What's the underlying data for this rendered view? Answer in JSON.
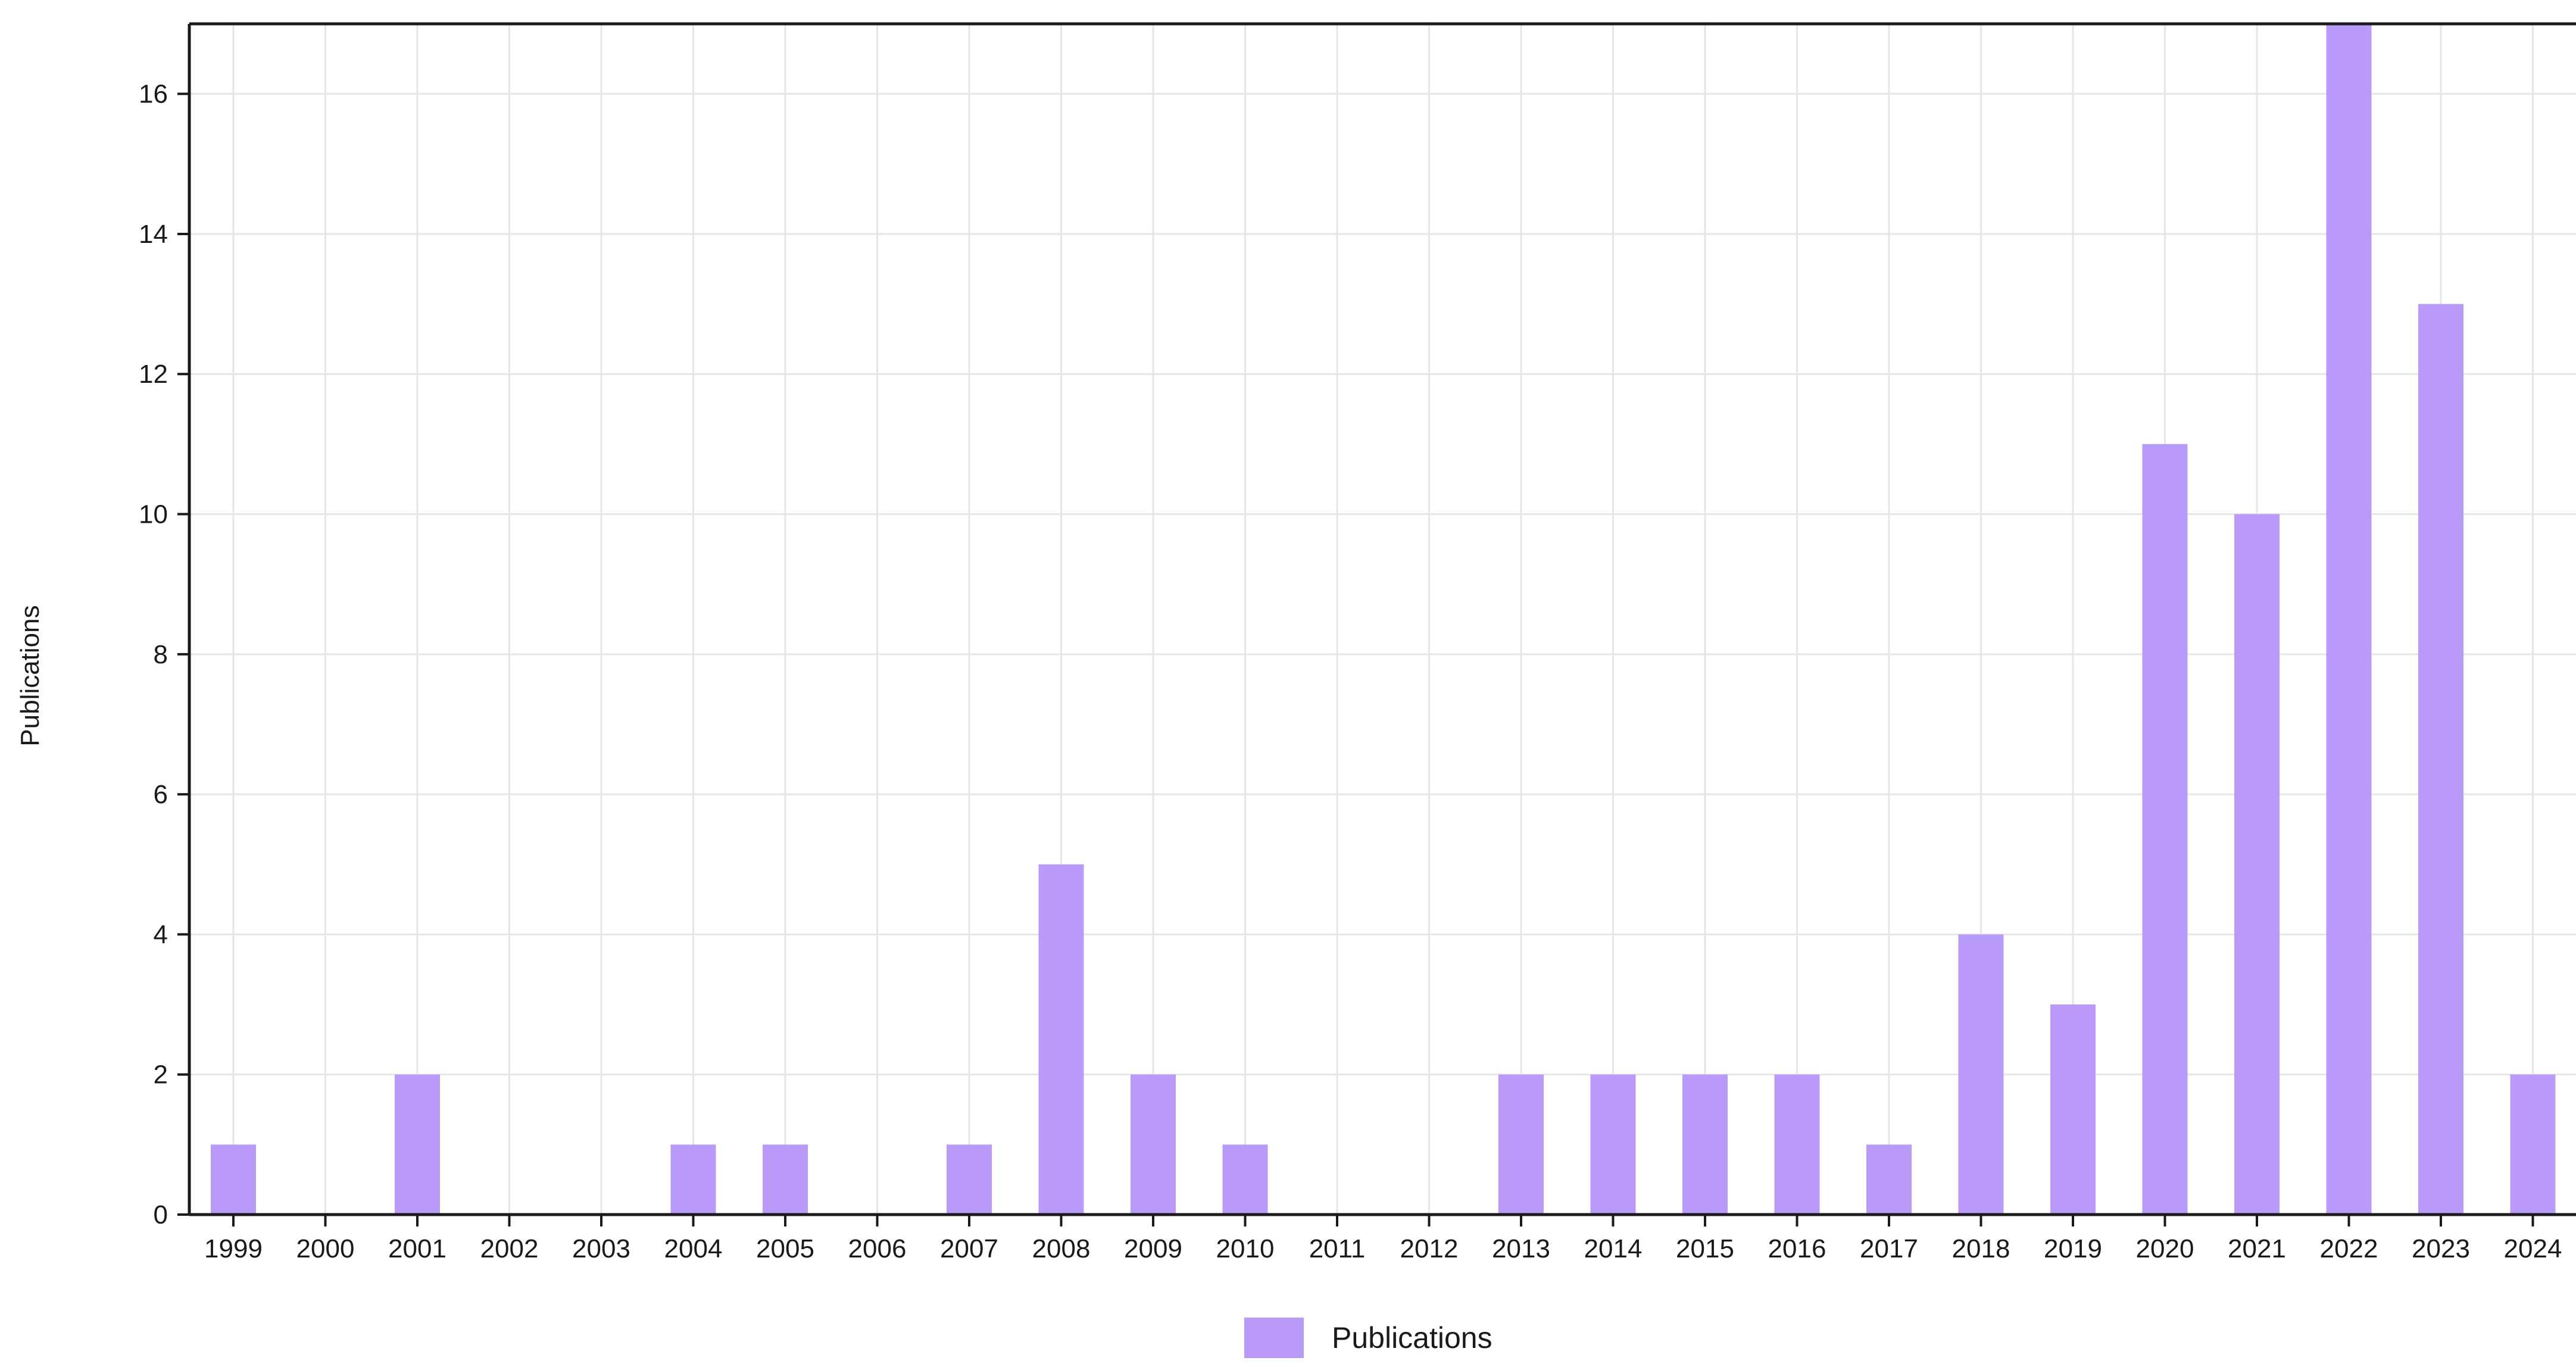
{
  "chart_data": {
    "type": "bar",
    "categories": [
      "1999",
      "2000",
      "2001",
      "2002",
      "2003",
      "2004",
      "2005",
      "2006",
      "2007",
      "2008",
      "2009",
      "2010",
      "2011",
      "2012",
      "2013",
      "2014",
      "2015",
      "2016",
      "2017",
      "2018",
      "2019",
      "2020",
      "2021",
      "2022",
      "2023",
      "2024"
    ],
    "series": [
      {
        "name": "Publications",
        "values": [
          1,
          0,
          2,
          0,
          0,
          1,
          1,
          0,
          1,
          5,
          2,
          1,
          0,
          0,
          2,
          2,
          2,
          2,
          1,
          4,
          3,
          11,
          10,
          17,
          13,
          2
        ]
      }
    ],
    "ylabel": "Publications",
    "xlabel": "",
    "ylim": [
      0,
      17
    ],
    "yticks": [
      0,
      2,
      4,
      6,
      8,
      10,
      12,
      14,
      16
    ],
    "grid": true,
    "legend_position": "bottom-center",
    "colors": {
      "bar": "#b99afa",
      "grid": "#e6e6e6",
      "axis": "#1a1a1a"
    }
  }
}
